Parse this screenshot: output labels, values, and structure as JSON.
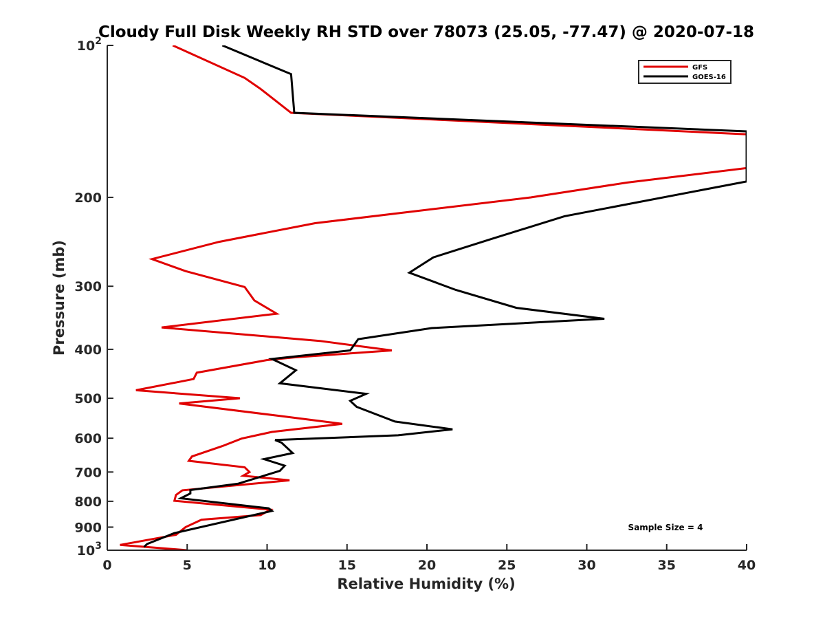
{
  "chart_data": {
    "type": "line",
    "title": "Cloudy Full Disk Weekly RH STD over 78073 (25.05, -77.47) @ 2020-07-18",
    "xlabel": "Relative Humidity (%)",
    "ylabel": "Pressure (mb)",
    "xlim": [
      0,
      40
    ],
    "ylim": [
      100,
      1000
    ],
    "y_scale": "log",
    "y_reversed": true,
    "grid": false,
    "legend_position": "top-right",
    "xticks": [
      {
        "value": 0,
        "label": "0"
      },
      {
        "value": 5,
        "label": "5"
      },
      {
        "value": 10,
        "label": "10"
      },
      {
        "value": 15,
        "label": "15"
      },
      {
        "value": 20,
        "label": "20"
      },
      {
        "value": 25,
        "label": "25"
      },
      {
        "value": 30,
        "label": "30"
      },
      {
        "value": 35,
        "label": "35"
      },
      {
        "value": 40,
        "label": "40"
      }
    ],
    "yticks": [
      {
        "value": 100,
        "base": "10",
        "exp": "2"
      },
      {
        "value": 200,
        "label": "200"
      },
      {
        "value": 300,
        "label": "300"
      },
      {
        "value": 400,
        "label": "400"
      },
      {
        "value": 500,
        "label": "500"
      },
      {
        "value": 600,
        "label": "600"
      },
      {
        "value": 700,
        "label": "700"
      },
      {
        "value": 800,
        "label": "800"
      },
      {
        "value": 900,
        "label": "900"
      },
      {
        "value": 1000,
        "base": "10",
        "exp": "3"
      }
    ],
    "annotation": "Sample Size = 4",
    "series": [
      {
        "name": "GFS",
        "color": "#e00000",
        "points": [
          [
            4.1,
            100
          ],
          [
            8.6,
            116
          ],
          [
            9.6,
            122
          ],
          [
            11.5,
            136
          ],
          [
            40,
            150
          ],
          [
            40,
            175
          ],
          [
            32.5,
            187
          ],
          [
            26.5,
            200
          ],
          [
            13.0,
            225
          ],
          [
            7.0,
            245
          ],
          [
            2.8,
            265
          ],
          [
            4.9,
            280
          ],
          [
            8.6,
            301
          ],
          [
            9.2,
            320
          ],
          [
            10.6,
            340
          ],
          [
            3.4,
            362
          ],
          [
            13.3,
            385
          ],
          [
            17.8,
            402
          ],
          [
            11.7,
            415
          ],
          [
            10.0,
            420
          ],
          [
            5.6,
            445
          ],
          [
            5.4,
            458
          ],
          [
            1.8,
            482
          ],
          [
            8.3,
            500
          ],
          [
            4.5,
            512
          ],
          [
            10.8,
            542
          ],
          [
            14.7,
            562
          ],
          [
            10.3,
            583
          ],
          [
            8.4,
            601
          ],
          [
            7.2,
            622
          ],
          [
            5.3,
            652
          ],
          [
            5.1,
            665
          ],
          [
            8.6,
            685
          ],
          [
            8.9,
            700
          ],
          [
            8.5,
            712
          ],
          [
            11.4,
            727
          ],
          [
            4.7,
            761
          ],
          [
            4.3,
            777
          ],
          [
            4.2,
            798
          ],
          [
            10.2,
            831
          ],
          [
            9.6,
            852
          ],
          [
            5.9,
            870
          ],
          [
            4.9,
            900
          ],
          [
            4.3,
            932
          ],
          [
            0.8,
            976
          ],
          [
            5.0,
            1000
          ]
        ]
      },
      {
        "name": "GOES-16",
        "color": "#000000",
        "points": [
          [
            7.2,
            100
          ],
          [
            11.5,
            114
          ],
          [
            11.7,
            136
          ],
          [
            40,
            148
          ],
          [
            40,
            186
          ],
          [
            28.6,
            218
          ],
          [
            24.0,
            242
          ],
          [
            20.4,
            263
          ],
          [
            18.9,
            282
          ],
          [
            21.8,
            305
          ],
          [
            25.6,
            331
          ],
          [
            31.1,
            348
          ],
          [
            20.3,
            363
          ],
          [
            15.7,
            382
          ],
          [
            15.2,
            402
          ],
          [
            10.3,
            418
          ],
          [
            11.8,
            440
          ],
          [
            10.8,
            467
          ],
          [
            16.2,
            490
          ],
          [
            15.2,
            506
          ],
          [
            15.6,
            520
          ],
          [
            18.0,
            556
          ],
          [
            21.6,
            576
          ],
          [
            18.2,
            592
          ],
          [
            10.5,
            605
          ],
          [
            10.9,
            612
          ],
          [
            11.6,
            642
          ],
          [
            9.8,
            660
          ],
          [
            11.1,
            680
          ],
          [
            10.8,
            696
          ],
          [
            8.2,
            738
          ],
          [
            5.2,
            760
          ],
          [
            5.2,
            772
          ],
          [
            4.6,
            789
          ],
          [
            10.1,
            826
          ],
          [
            10.3,
            836
          ],
          [
            4.2,
            925
          ],
          [
            2.5,
            972
          ],
          [
            2.3,
            985
          ]
        ]
      }
    ]
  }
}
